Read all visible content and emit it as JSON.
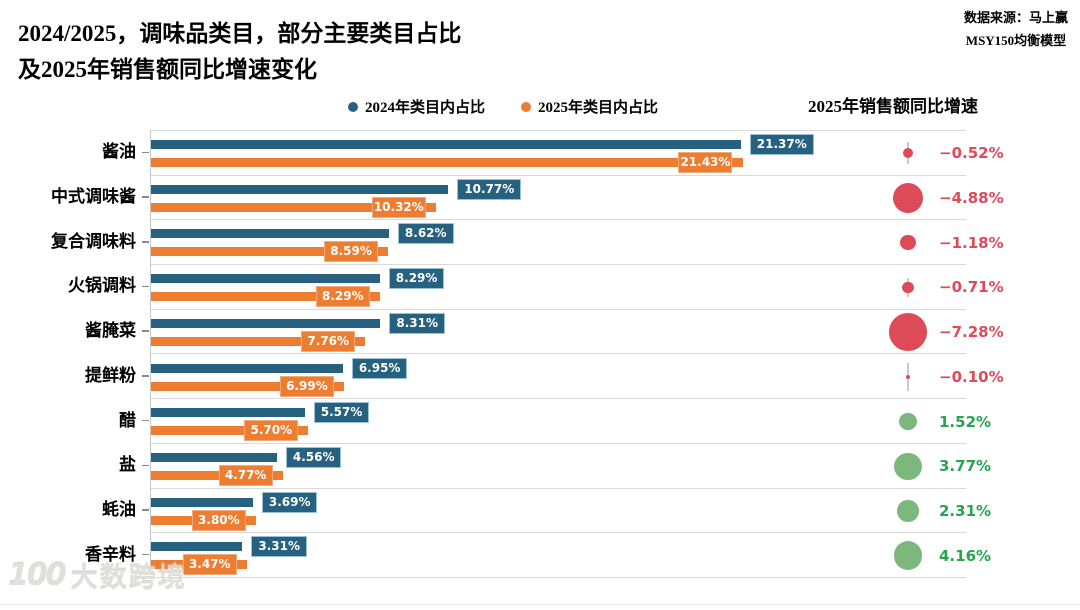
{
  "title": {
    "line1": "2024/2025，调味品类目，部分主要类目占比",
    "line2": "及2025年销售额同比增速变化"
  },
  "source": {
    "line1": "数据来源：马上赢",
    "line2": "MSY150均衡模型"
  },
  "legend": {
    "items": [
      {
        "label": "2024年类目内占比",
        "color": "#26617F"
      },
      {
        "label": "2025年类目内占比",
        "color": "#ED7D31"
      }
    ]
  },
  "right_header": "2025年销售额同比增速",
  "watermark": {
    "logo": "100",
    "text": "大数跨境"
  },
  "colors": {
    "bar_2024": "#26617F",
    "bar_2025": "#ED7D31",
    "label_2024_border": "#9CC2D6",
    "label_2025_border": "#F1A97E",
    "negative": "#DD4B59",
    "positive_bubble": "#7CB87D",
    "positive_text": "#28A351",
    "gridline": "#d9d9d9"
  },
  "chart_data": {
    "type": "bar",
    "orientation": "horizontal",
    "title": "2024/2025，调味品类目，部分主要类目占比及2025年销售额同比增速变化",
    "categories": [
      "酱油",
      "中式调味酱",
      "复合调味料",
      "火锅调料",
      "酱腌菜",
      "提鲜粉",
      "醋",
      "盐",
      "蚝油",
      "香辛料"
    ],
    "series": [
      {
        "name": "2024年类目内占比",
        "values": [
          21.37,
          10.77,
          8.62,
          8.29,
          8.31,
          6.95,
          5.57,
          4.56,
          3.69,
          3.31
        ]
      },
      {
        "name": "2025年类目内占比",
        "values": [
          21.43,
          10.32,
          8.59,
          8.29,
          7.76,
          6.99,
          5.7,
          4.77,
          3.8,
          3.47
        ]
      }
    ],
    "bubble_series": {
      "name": "2025年销售额同比增速",
      "values": [
        -0.52,
        -4.88,
        -1.18,
        -0.71,
        -7.28,
        -0.1,
        1.52,
        3.77,
        2.31,
        4.16
      ]
    },
    "value_suffix": "%",
    "xlim": [
      0,
      29.5
    ],
    "grid": "horizontal",
    "legend_position": "top"
  }
}
